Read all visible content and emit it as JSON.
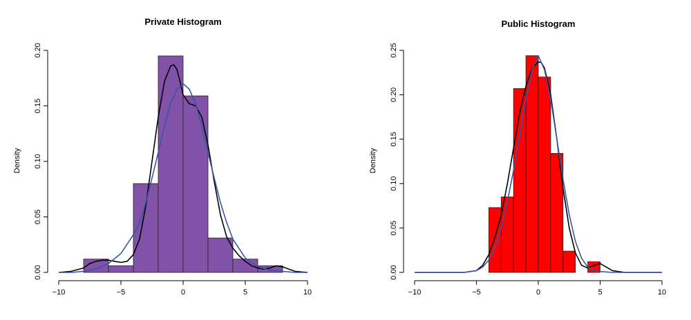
{
  "chart_data": [
    {
      "type": "bar",
      "title": "Private Histogram",
      "xlabel": "",
      "ylabel": "Density",
      "xlim": [
        -10,
        10
      ],
      "ylim": [
        0,
        0.2
      ],
      "xticks": [
        -10,
        -5,
        0,
        5,
        10
      ],
      "yticks": [
        0.0,
        0.05,
        0.1,
        0.15,
        0.2
      ],
      "ytick_labels": [
        "0.00",
        "0.05",
        "0.10",
        "0.15",
        "0.20"
      ],
      "bar_color": "#8251A8",
      "bins": [
        {
          "x0": -8,
          "x1": -6,
          "density": 0.012
        },
        {
          "x0": -6,
          "x1": -4,
          "density": 0.006
        },
        {
          "x0": -4,
          "x1": -2,
          "density": 0.08
        },
        {
          "x0": -2,
          "x1": 0,
          "density": 0.195
        },
        {
          "x0": 0,
          "x1": 2,
          "density": 0.159
        },
        {
          "x0": 2,
          "x1": 4,
          "density": 0.031
        },
        {
          "x0": 4,
          "x1": 6,
          "density": 0.012
        },
        {
          "x0": 6,
          "x1": 8,
          "density": 0.006
        }
      ],
      "series": [
        {
          "color": "#000000",
          "x": [
            -10,
            -9,
            -8,
            -7.5,
            -7,
            -6.5,
            -6,
            -5.5,
            -5,
            -4.5,
            -4,
            -3.5,
            -3,
            -2.5,
            -2,
            -1.5,
            -1,
            -0.75,
            -0.5,
            -0.25,
            0,
            0.5,
            1,
            1.5,
            2,
            2.5,
            3,
            3.5,
            4,
            4.5,
            5,
            5.5,
            6,
            6.5,
            7,
            7.5,
            8,
            8.5,
            9,
            10
          ],
          "y": [
            0.0,
            0.001,
            0.004,
            0.008,
            0.01,
            0.011,
            0.011,
            0.01,
            0.009,
            0.01,
            0.016,
            0.03,
            0.06,
            0.1,
            0.14,
            0.172,
            0.186,
            0.187,
            0.183,
            0.172,
            0.16,
            0.152,
            0.15,
            0.14,
            0.115,
            0.082,
            0.052,
            0.032,
            0.022,
            0.015,
            0.01,
            0.006,
            0.004,
            0.003,
            0.004,
            0.006,
            0.005,
            0.003,
            0.001,
            0.0
          ]
        },
        {
          "color": "#3A55A4",
          "x": [
            -10,
            -9,
            -8,
            -7,
            -6,
            -5,
            -4,
            -3.5,
            -3,
            -2.5,
            -2,
            -1.5,
            -1,
            -0.5,
            0,
            0.5,
            1,
            1.5,
            2,
            2.5,
            3,
            3.5,
            4,
            5,
            6,
            7,
            8,
            9,
            10
          ],
          "y": [
            0.0,
            0.0,
            0.001,
            0.003,
            0.008,
            0.017,
            0.034,
            0.045,
            0.063,
            0.085,
            0.108,
            0.132,
            0.152,
            0.165,
            0.17,
            0.165,
            0.152,
            0.132,
            0.108,
            0.085,
            0.063,
            0.045,
            0.03,
            0.013,
            0.005,
            0.002,
            0.001,
            0.0,
            0.0
          ]
        }
      ]
    },
    {
      "type": "bar",
      "title": "Public Histogram",
      "xlabel": "",
      "ylabel": "Density",
      "xlim": [
        -10,
        10
      ],
      "ylim": [
        0,
        0.25
      ],
      "xticks": [
        -10,
        -5,
        0,
        5,
        10
      ],
      "yticks": [
        0.0,
        0.05,
        0.1,
        0.15,
        0.2,
        0.25
      ],
      "ytick_labels": [
        "0.00",
        "0.05",
        "0.10",
        "0.15",
        "0.20",
        "0.25"
      ],
      "bar_color": "#FF0000",
      "bins": [
        {
          "x0": -4,
          "x1": -3,
          "density": 0.073
        },
        {
          "x0": -3,
          "x1": -2,
          "density": 0.085
        },
        {
          "x0": -2,
          "x1": -1,
          "density": 0.207
        },
        {
          "x0": -1,
          "x1": 0,
          "density": 0.244
        },
        {
          "x0": 0,
          "x1": 1,
          "density": 0.22
        },
        {
          "x0": 1,
          "x1": 2,
          "density": 0.134
        },
        {
          "x0": 2,
          "x1": 3,
          "density": 0.024
        },
        {
          "x0": 3,
          "x1": 4,
          "density": 0.0
        },
        {
          "x0": 4,
          "x1": 5,
          "density": 0.012
        }
      ],
      "series": [
        {
          "color": "#000000",
          "x": [
            -10,
            -6,
            -5,
            -4.5,
            -4,
            -3.5,
            -3,
            -2.5,
            -2,
            -1.5,
            -1,
            -0.5,
            0,
            0.25,
            0.5,
            1,
            1.5,
            2,
            2.5,
            3,
            3.5,
            4,
            4.5,
            5,
            5.5,
            6,
            7,
            10
          ],
          "y": [
            0.0,
            0.0,
            0.002,
            0.008,
            0.02,
            0.04,
            0.065,
            0.1,
            0.14,
            0.18,
            0.21,
            0.23,
            0.237,
            0.236,
            0.23,
            0.2,
            0.15,
            0.095,
            0.05,
            0.022,
            0.008,
            0.005,
            0.008,
            0.01,
            0.006,
            0.002,
            0.0,
            0.0
          ]
        },
        {
          "color": "#3A55A4",
          "x": [
            -10,
            -6,
            -5,
            -4.5,
            -4,
            -3.5,
            -3,
            -2.5,
            -2,
            -1.5,
            -1,
            -0.5,
            0,
            0.5,
            1,
            1.5,
            2,
            2.5,
            3,
            3.5,
            4,
            4.5,
            5,
            6,
            10
          ],
          "y": [
            0.0,
            0.0,
            0.002,
            0.006,
            0.014,
            0.028,
            0.05,
            0.08,
            0.115,
            0.155,
            0.195,
            0.228,
            0.244,
            0.228,
            0.195,
            0.15,
            0.105,
            0.065,
            0.035,
            0.016,
            0.006,
            0.002,
            0.001,
            0.0,
            0.0
          ]
        }
      ]
    }
  ]
}
